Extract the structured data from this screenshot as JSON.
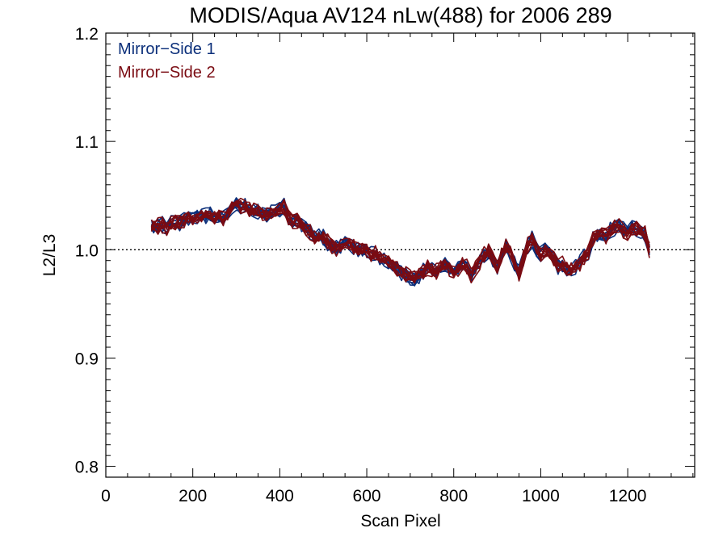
{
  "chart_data": {
    "type": "line",
    "title": "MODIS/Aqua AV124 nLw(488) for 2006 289",
    "xlabel": "Scan Pixel",
    "ylabel": "L2/L3",
    "xlim": [
      0,
      1354
    ],
    "ylim": [
      0.79,
      1.2
    ],
    "x_ticks": [
      "0",
      "200",
      "400",
      "600",
      "800",
      "1000",
      "1200"
    ],
    "y_ticks": [
      "0.8",
      "0.9",
      "1.0",
      "1.1",
      "1.2"
    ],
    "reference_line": {
      "y": 1.0,
      "style": "dotted"
    },
    "legend": {
      "placement": "top-left",
      "entries": [
        "Mirror−Side 1",
        "Mirror−Side 2"
      ]
    },
    "colors": {
      "Mirror-Side 1": "#0b2f7a",
      "Mirror-Side 2": "#7a0b12"
    },
    "curve_pixels": [
      105,
      110,
      120,
      130,
      140,
      150,
      160,
      170,
      180,
      190,
      200,
      210,
      220,
      230,
      240,
      250,
      260,
      270,
      280,
      290,
      300,
      310,
      320,
      330,
      340,
      350,
      360,
      370,
      380,
      390,
      400,
      410,
      420,
      430,
      440,
      450,
      460,
      470,
      480,
      490,
      500,
      510,
      520,
      530,
      540,
      550,
      560,
      570,
      580,
      590,
      600,
      610,
      620,
      630,
      640,
      650,
      660,
      670,
      680,
      690,
      700,
      710,
      720,
      730,
      740,
      750,
      760,
      770,
      780,
      790,
      800,
      810,
      820,
      830,
      840,
      850,
      860,
      870,
      880,
      890,
      900,
      910,
      920,
      930,
      940,
      950,
      960,
      970,
      980,
      990,
      1000,
      1010,
      1020,
      1030,
      1040,
      1050,
      1060,
      1070,
      1080,
      1090,
      1100,
      1110,
      1120,
      1130,
      1140,
      1150,
      1160,
      1170,
      1180,
      1190,
      1200,
      1210,
      1220,
      1230,
      1240,
      1250
    ],
    "curve_values": [
      1.021,
      1.02,
      1.022,
      1.023,
      1.021,
      1.024,
      1.026,
      1.025,
      1.027,
      1.029,
      1.03,
      1.031,
      1.03,
      1.031,
      1.032,
      1.03,
      1.031,
      1.029,
      1.033,
      1.038,
      1.043,
      1.04,
      1.041,
      1.038,
      1.036,
      1.035,
      1.033,
      1.032,
      1.034,
      1.036,
      1.038,
      1.04,
      1.03,
      1.027,
      1.026,
      1.023,
      1.02,
      1.017,
      1.012,
      1.012,
      1.011,
      1.007,
      1.004,
      1.002,
      1.004,
      1.007,
      1.006,
      1.003,
      1.001,
      1.0,
      0.999,
      0.996,
      0.997,
      0.993,
      0.99,
      0.987,
      0.985,
      0.982,
      0.979,
      0.977,
      0.975,
      0.973,
      0.976,
      0.98,
      0.984,
      0.982,
      0.98,
      0.983,
      0.986,
      0.982,
      0.979,
      0.983,
      0.987,
      0.984,
      0.976,
      0.983,
      0.989,
      0.996,
      0.998,
      0.992,
      0.983,
      0.995,
      1.003,
      0.997,
      0.987,
      0.978,
      0.992,
      1.004,
      1.01,
      1.001,
      0.996,
      0.999,
      0.997,
      0.993,
      0.985,
      0.987,
      0.983,
      0.981,
      0.984,
      0.988,
      0.993,
      0.998,
      1.011,
      1.013,
      1.015,
      1.013,
      1.018,
      1.02,
      1.022,
      1.018,
      1.016,
      1.021,
      1.019,
      1.017,
      1.015,
      0.999
    ]
  }
}
